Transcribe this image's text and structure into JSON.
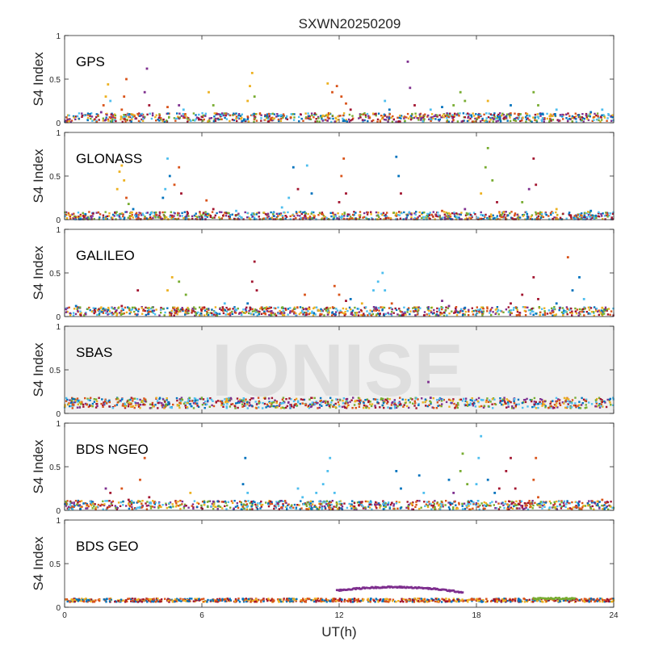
{
  "chart_data": {
    "type": "scatter",
    "title": "SXWN20250209",
    "xlabel": "UT(h)",
    "ylabel": "S4 Index",
    "xlim": [
      0,
      24
    ],
    "ylim": [
      0,
      1
    ],
    "x_ticks": [
      0,
      6,
      12,
      18,
      24
    ],
    "x_tick_labels": [
      "0",
      "6",
      "12",
      "18",
      "24"
    ],
    "y_ticks": [
      0,
      0.5,
      1
    ],
    "y_tick_labels": [
      "0",
      "0.5",
      "1"
    ],
    "watermark": "IONISE",
    "grid": false,
    "legend": "none",
    "series_colors": [
      "#0072BD",
      "#D95319",
      "#EDB120",
      "#7E2F8E",
      "#77AC30",
      "#4DBEEE",
      "#A2142F"
    ],
    "panels": [
      {
        "label": "GPS",
        "baseline": {
          "base": 0.06,
          "spread": 0.05
        },
        "highlighted": false,
        "points": [
          [
            1.6,
            0.12,
            3
          ],
          [
            1.7,
            0.2,
            1
          ],
          [
            1.8,
            0.3,
            2
          ],
          [
            1.9,
            0.44,
            2
          ],
          [
            2.0,
            0.25,
            5
          ],
          [
            2.5,
            0.15,
            1
          ],
          [
            2.6,
            0.3,
            1
          ],
          [
            2.7,
            0.5,
            1
          ],
          [
            3.5,
            0.35,
            3
          ],
          [
            3.6,
            0.62,
            3
          ],
          [
            3.7,
            0.2,
            6
          ],
          [
            4.5,
            0.18,
            1
          ],
          [
            5.0,
            0.2,
            3
          ],
          [
            5.2,
            0.15,
            5
          ],
          [
            6.3,
            0.35,
            2
          ],
          [
            6.5,
            0.2,
            4
          ],
          [
            8.0,
            0.25,
            2
          ],
          [
            8.1,
            0.42,
            2
          ],
          [
            8.2,
            0.57,
            2
          ],
          [
            8.3,
            0.3,
            4
          ],
          [
            11.5,
            0.45,
            2
          ],
          [
            11.7,
            0.35,
            1
          ],
          [
            11.9,
            0.42,
            1
          ],
          [
            12.1,
            0.3,
            1
          ],
          [
            12.3,
            0.22,
            1
          ],
          [
            12.5,
            0.15,
            6
          ],
          [
            14.0,
            0.25,
            5
          ],
          [
            14.2,
            0.15,
            0
          ],
          [
            15.0,
            0.7,
            3
          ],
          [
            15.1,
            0.4,
            3
          ],
          [
            15.3,
            0.2,
            6
          ],
          [
            16.0,
            0.15,
            5
          ],
          [
            16.5,
            0.18,
            0
          ],
          [
            17.0,
            0.2,
            4
          ],
          [
            17.3,
            0.35,
            4
          ],
          [
            17.5,
            0.25,
            4
          ],
          [
            18.5,
            0.25,
            2
          ],
          [
            19.5,
            0.2,
            0
          ],
          [
            20.5,
            0.35,
            4
          ],
          [
            20.7,
            0.2,
            4
          ],
          [
            21.5,
            0.15,
            5
          ],
          [
            23.0,
            0.12,
            0
          ],
          [
            23.5,
            0.15,
            5
          ]
        ]
      },
      {
        "label": "GLONASS",
        "baseline": {
          "base": 0.04,
          "spread": 0.05
        },
        "highlighted": false,
        "points": [
          [
            2.3,
            0.35,
            2
          ],
          [
            2.4,
            0.55,
            2
          ],
          [
            2.5,
            0.62,
            2
          ],
          [
            2.6,
            0.45,
            2
          ],
          [
            2.7,
            0.25,
            1
          ],
          [
            2.8,
            0.18,
            4
          ],
          [
            3.0,
            0.12,
            0
          ],
          [
            4.3,
            0.25,
            0
          ],
          [
            4.4,
            0.35,
            5
          ],
          [
            4.5,
            0.7,
            5
          ],
          [
            4.6,
            0.5,
            0
          ],
          [
            4.8,
            0.4,
            1
          ],
          [
            5.0,
            0.6,
            1
          ],
          [
            5.1,
            0.3,
            6
          ],
          [
            6.2,
            0.22,
            1
          ],
          [
            6.5,
            0.12,
            6
          ],
          [
            7.5,
            0.1,
            5
          ],
          [
            8.5,
            0.08,
            3
          ],
          [
            9.5,
            0.14,
            5
          ],
          [
            9.8,
            0.25,
            5
          ],
          [
            10.0,
            0.6,
            0
          ],
          [
            10.2,
            0.35,
            6
          ],
          [
            10.6,
            0.62,
            5
          ],
          [
            10.8,
            0.3,
            0
          ],
          [
            12.0,
            0.2,
            6
          ],
          [
            12.1,
            0.5,
            1
          ],
          [
            12.2,
            0.7,
            1
          ],
          [
            12.3,
            0.3,
            6
          ],
          [
            14.5,
            0.72,
            0
          ],
          [
            14.6,
            0.5,
            0
          ],
          [
            14.7,
            0.3,
            6
          ],
          [
            16.5,
            0.1,
            1
          ],
          [
            17.5,
            0.12,
            3
          ],
          [
            18.2,
            0.3,
            2
          ],
          [
            18.4,
            0.6,
            4
          ],
          [
            18.5,
            0.82,
            4
          ],
          [
            18.7,
            0.45,
            4
          ],
          [
            18.9,
            0.2,
            6
          ],
          [
            20.0,
            0.2,
            4
          ],
          [
            20.3,
            0.35,
            3
          ],
          [
            20.5,
            0.7,
            6
          ],
          [
            20.6,
            0.4,
            6
          ],
          [
            21.5,
            0.12,
            2
          ],
          [
            23.0,
            0.1,
            0
          ]
        ]
      },
      {
        "label": "GALILEO",
        "baseline": {
          "base": 0.06,
          "spread": 0.05
        },
        "highlighted": false,
        "points": [
          [
            0.5,
            0.12,
            0
          ],
          [
            2.5,
            0.12,
            6
          ],
          [
            3.2,
            0.3,
            6
          ],
          [
            4.5,
            0.3,
            2
          ],
          [
            4.7,
            0.45,
            2
          ],
          [
            5.0,
            0.4,
            4
          ],
          [
            5.3,
            0.25,
            4
          ],
          [
            7.0,
            0.15,
            5
          ],
          [
            8.0,
            0.15,
            0
          ],
          [
            8.2,
            0.4,
            6
          ],
          [
            8.3,
            0.63,
            6
          ],
          [
            8.4,
            0.3,
            6
          ],
          [
            9.5,
            0.1,
            4
          ],
          [
            10.5,
            0.25,
            1
          ],
          [
            11.8,
            0.35,
            1
          ],
          [
            12.0,
            0.25,
            1
          ],
          [
            12.3,
            0.18,
            6
          ],
          [
            12.5,
            0.2,
            0
          ],
          [
            13.0,
            0.15,
            2
          ],
          [
            13.5,
            0.3,
            5
          ],
          [
            13.7,
            0.4,
            5
          ],
          [
            13.9,
            0.5,
            5
          ],
          [
            14.0,
            0.3,
            5
          ],
          [
            14.3,
            0.15,
            1
          ],
          [
            15.0,
            0.08,
            0
          ],
          [
            16.5,
            0.18,
            3
          ],
          [
            16.8,
            0.12,
            3
          ],
          [
            17.5,
            0.1,
            0
          ],
          [
            19.5,
            0.15,
            6
          ],
          [
            20.0,
            0.25,
            6
          ],
          [
            20.5,
            0.45,
            6
          ],
          [
            20.7,
            0.2,
            6
          ],
          [
            21.5,
            0.15,
            0
          ],
          [
            22.0,
            0.68,
            1
          ],
          [
            22.2,
            0.3,
            0
          ],
          [
            22.5,
            0.45,
            0
          ],
          [
            22.7,
            0.2,
            5
          ],
          [
            23.5,
            0.1,
            2
          ]
        ]
      },
      {
        "label": "SBAS",
        "baseline": {
          "base": 0.12,
          "spread": 0.06
        },
        "highlighted": true,
        "points": [
          [
            15.9,
            0.36,
            3
          ],
          [
            16.0,
            0.18,
            3
          ]
        ]
      },
      {
        "label": "BDS NGEO",
        "baseline": {
          "base": 0.06,
          "spread": 0.05
        },
        "highlighted": false,
        "points": [
          [
            1.8,
            0.25,
            3
          ],
          [
            2.0,
            0.2,
            6
          ],
          [
            2.5,
            0.25,
            1
          ],
          [
            2.8,
            0.12,
            6
          ],
          [
            3.3,
            0.35,
            1
          ],
          [
            3.5,
            0.6,
            1
          ],
          [
            3.7,
            0.15,
            6
          ],
          [
            5.5,
            0.2,
            2
          ],
          [
            6.5,
            0.1,
            3
          ],
          [
            7.8,
            0.3,
            0
          ],
          [
            7.9,
            0.6,
            0
          ],
          [
            8.0,
            0.2,
            5
          ],
          [
            9.0,
            0.1,
            6
          ],
          [
            10.2,
            0.25,
            5
          ],
          [
            10.4,
            0.15,
            5
          ],
          [
            11.0,
            0.2,
            5
          ],
          [
            11.3,
            0.3,
            5
          ],
          [
            11.5,
            0.45,
            5
          ],
          [
            11.6,
            0.6,
            5
          ],
          [
            11.8,
            0.2,
            5
          ],
          [
            14.5,
            0.45,
            0
          ],
          [
            14.7,
            0.25,
            0
          ],
          [
            15.5,
            0.4,
            0
          ],
          [
            15.7,
            0.2,
            5
          ],
          [
            16.8,
            0.35,
            0
          ],
          [
            17.0,
            0.2,
            3
          ],
          [
            17.3,
            0.45,
            4
          ],
          [
            17.4,
            0.65,
            4
          ],
          [
            17.6,
            0.3,
            4
          ],
          [
            18.0,
            0.3,
            5
          ],
          [
            18.1,
            0.6,
            5
          ],
          [
            18.2,
            0.85,
            5
          ],
          [
            18.5,
            0.35,
            0
          ],
          [
            18.8,
            0.2,
            0
          ],
          [
            19.0,
            0.25,
            6
          ],
          [
            19.3,
            0.45,
            6
          ],
          [
            19.5,
            0.6,
            6
          ],
          [
            19.7,
            0.25,
            6
          ],
          [
            20.5,
            0.35,
            1
          ],
          [
            20.6,
            0.6,
            1
          ],
          [
            20.7,
            0.15,
            1
          ],
          [
            22.5,
            0.1,
            3
          ],
          [
            23.5,
            0.12,
            1
          ]
        ]
      },
      {
        "label": "BDS GEO",
        "baseline": {
          "base": 0.08,
          "spread": 0.02
        },
        "highlighted": false,
        "points": [],
        "arc": {
          "x_start": 11.9,
          "x_end": 17.4,
          "y_start": 0.19,
          "y_peak": 0.23,
          "y_end": 0.17,
          "color_index": 3
        },
        "segments": [
          {
            "x_start": 20.5,
            "x_end": 22.3,
            "y": 0.1,
            "color_index": 4
          }
        ]
      }
    ]
  }
}
